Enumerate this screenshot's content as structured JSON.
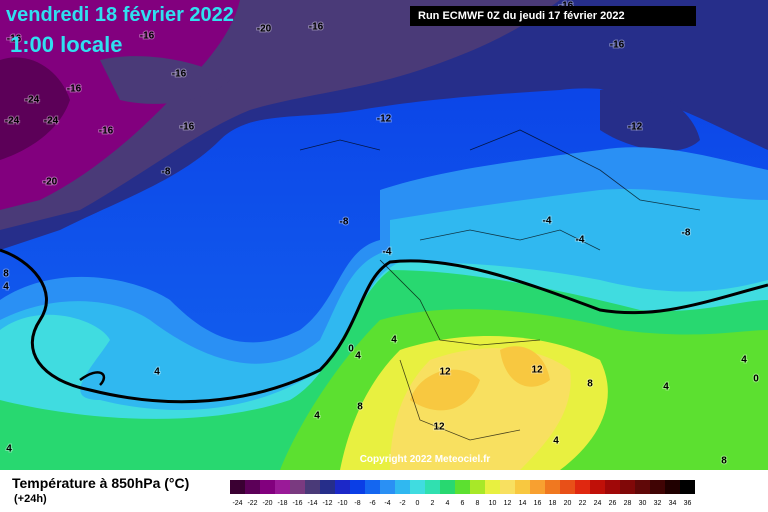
{
  "header": {
    "date": "vendredi 18 février 2022",
    "time": "1:00 locale",
    "run": "Run ECMWF 0Z du jeudi 17 février 2022"
  },
  "copyright": "Copyright 2022 Meteociel.fr",
  "legend": {
    "title": "Température à 850hPa (°C)",
    "lead": "(+24h)",
    "ticks": [
      -24,
      -22,
      -20,
      -18,
      -16,
      -14,
      -12,
      -10,
      -8,
      -6,
      -4,
      -2,
      0,
      2,
      4,
      6,
      8,
      10,
      12,
      14,
      16,
      18,
      20,
      22,
      24,
      26,
      28,
      30,
      32,
      34,
      36
    ],
    "colors": [
      "#3a0032",
      "#5c0058",
      "#82007e",
      "#9a1a98",
      "#7a3a80",
      "#4a3a78",
      "#262e8a",
      "#1c28c8",
      "#0a3ee6",
      "#1466f0",
      "#2a90f4",
      "#30b8f0",
      "#40dce0",
      "#30e0b0",
      "#28d870",
      "#5ce030",
      "#a8e828",
      "#e8f040",
      "#f8e060",
      "#f8c840",
      "#f8a030",
      "#f07820",
      "#e85018",
      "#e02810",
      "#c01008",
      "#a00808",
      "#800808",
      "#600808",
      "#400404",
      "#200000",
      "#000000"
    ]
  },
  "contour_labels": [
    -16,
    -16,
    -20,
    -16,
    -16,
    -16,
    -24,
    -24,
    -24,
    -16,
    -16,
    -16,
    -16,
    -20,
    -8,
    -12,
    -12,
    -8,
    -4,
    -4,
    -4,
    -8,
    0,
    4,
    4,
    4,
    8,
    12,
    12,
    8,
    12,
    4,
    8,
    4,
    0,
    4,
    4,
    8,
    4,
    4
  ]
}
